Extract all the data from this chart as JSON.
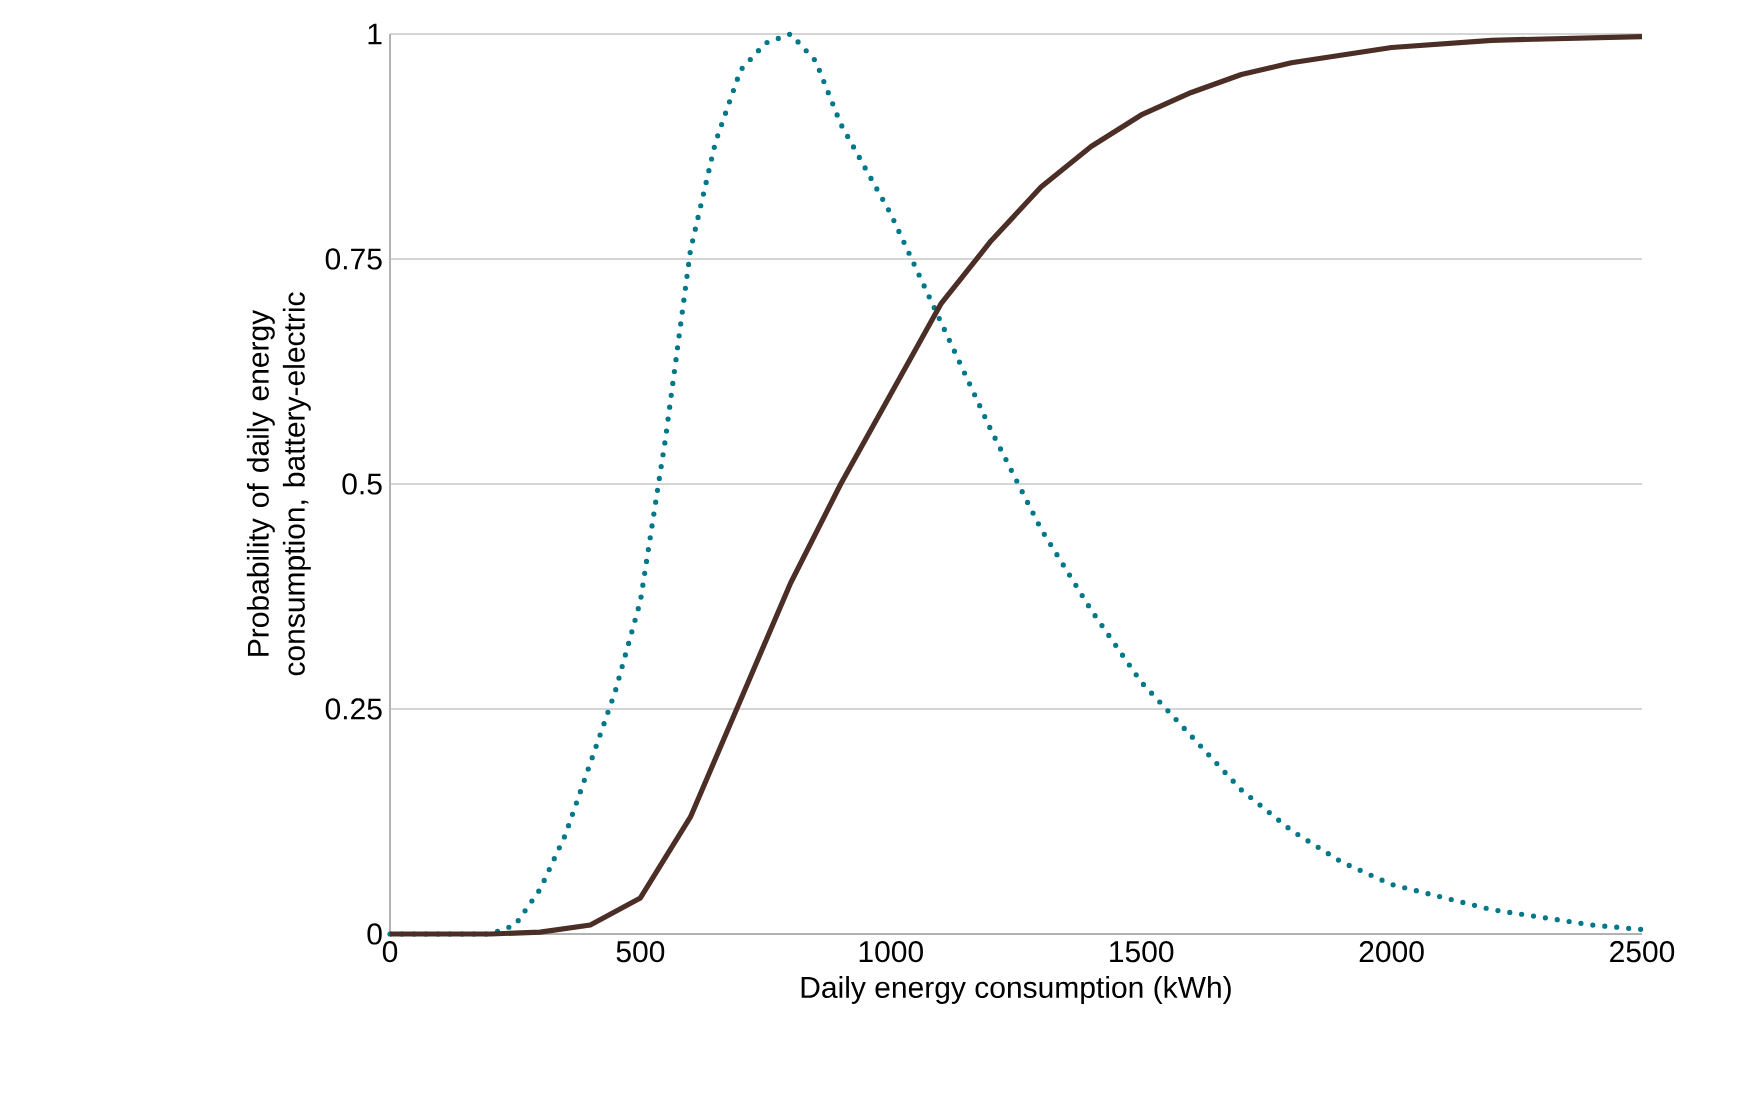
{
  "chart_data": {
    "type": "line",
    "xlabel": "Daily energy consumption (kWh)",
    "ylabel": "Probability of daily energy consumption, battery-electric",
    "xlim": [
      0,
      2500
    ],
    "xticks": [
      0,
      500,
      1000,
      1500,
      2000,
      2500
    ],
    "ylim": [
      0,
      1
    ],
    "yticks": [
      0,
      {
        "value": 0.25,
        "label": "0.25"
      },
      {
        "value": 0.5,
        "label": "0.5"
      },
      {
        "value": 0.75,
        "label": "0.75"
      },
      1
    ],
    "grid": "y",
    "marker": "none",
    "series": [
      {
        "color": "#00788a",
        "line_style": "dotted",
        "x": [
          0,
          100,
          200,
          250,
          300,
          350,
          400,
          450,
          500,
          550,
          600,
          650,
          700,
          750,
          800,
          850,
          900,
          1000,
          1100,
          1200,
          1300,
          1400,
          1500,
          1600,
          1700,
          1800,
          1900,
          2000,
          2200,
          2400,
          2500
        ],
        "values": [
          0,
          0,
          0,
          0.01,
          0.05,
          0.11,
          0.19,
          0.27,
          0.37,
          0.55,
          0.76,
          0.88,
          0.96,
          0.99,
          1.0,
          0.97,
          0.9,
          0.8,
          0.68,
          0.56,
          0.45,
          0.36,
          0.28,
          0.22,
          0.16,
          0.115,
          0.08,
          0.055,
          0.027,
          0.01,
          0.005
        ]
      },
      {
        "color": "#4b2e26",
        "line_style": "solid",
        "x": [
          0,
          200,
          300,
          400,
          500,
          600,
          700,
          800,
          900,
          1000,
          1100,
          1200,
          1300,
          1400,
          1500,
          1600,
          1700,
          1800,
          2000,
          2200,
          2500
        ],
        "values": [
          0,
          0,
          0.002,
          0.01,
          0.04,
          0.13,
          0.26,
          0.39,
          0.5,
          0.6,
          0.7,
          0.77,
          0.83,
          0.875,
          0.91,
          0.935,
          0.955,
          0.968,
          0.985,
          0.993,
          0.997
        ]
      }
    ]
  }
}
